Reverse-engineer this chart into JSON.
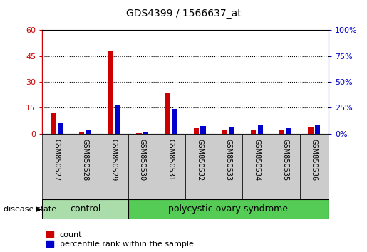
{
  "title": "GDS4399 / 1566637_at",
  "samples": [
    "GSM850527",
    "GSM850528",
    "GSM850529",
    "GSM850530",
    "GSM850531",
    "GSM850532",
    "GSM850533",
    "GSM850534",
    "GSM850535",
    "GSM850536"
  ],
  "count_values": [
    12,
    1.2,
    48,
    0.3,
    24,
    3,
    2.5,
    2,
    2,
    4
  ],
  "percentile_values": [
    10,
    3,
    27,
    2,
    24,
    7,
    6,
    9,
    5,
    8
  ],
  "left_ylim": [
    0,
    60
  ],
  "right_ylim": [
    0,
    100
  ],
  "left_yticks": [
    0,
    15,
    30,
    45,
    60
  ],
  "right_yticks": [
    0,
    25,
    50,
    75,
    100
  ],
  "left_ytick_labels": [
    "0",
    "15",
    "30",
    "45",
    "60"
  ],
  "right_ytick_labels": [
    "0%",
    "25%",
    "50%",
    "75%",
    "100%"
  ],
  "count_color": "#cc0000",
  "percentile_color": "#0000cc",
  "control_n": 3,
  "control_label": "control",
  "pcos_label": "polycystic ovary syndrome",
  "disease_state_label": "disease state",
  "control_bg": "#aaddaa",
  "pcos_bg": "#55cc55",
  "xticklabel_bg": "#cccccc",
  "legend_count": "count",
  "legend_percentile": "percentile rank within the sample",
  "figure_bg": "#ffffff"
}
